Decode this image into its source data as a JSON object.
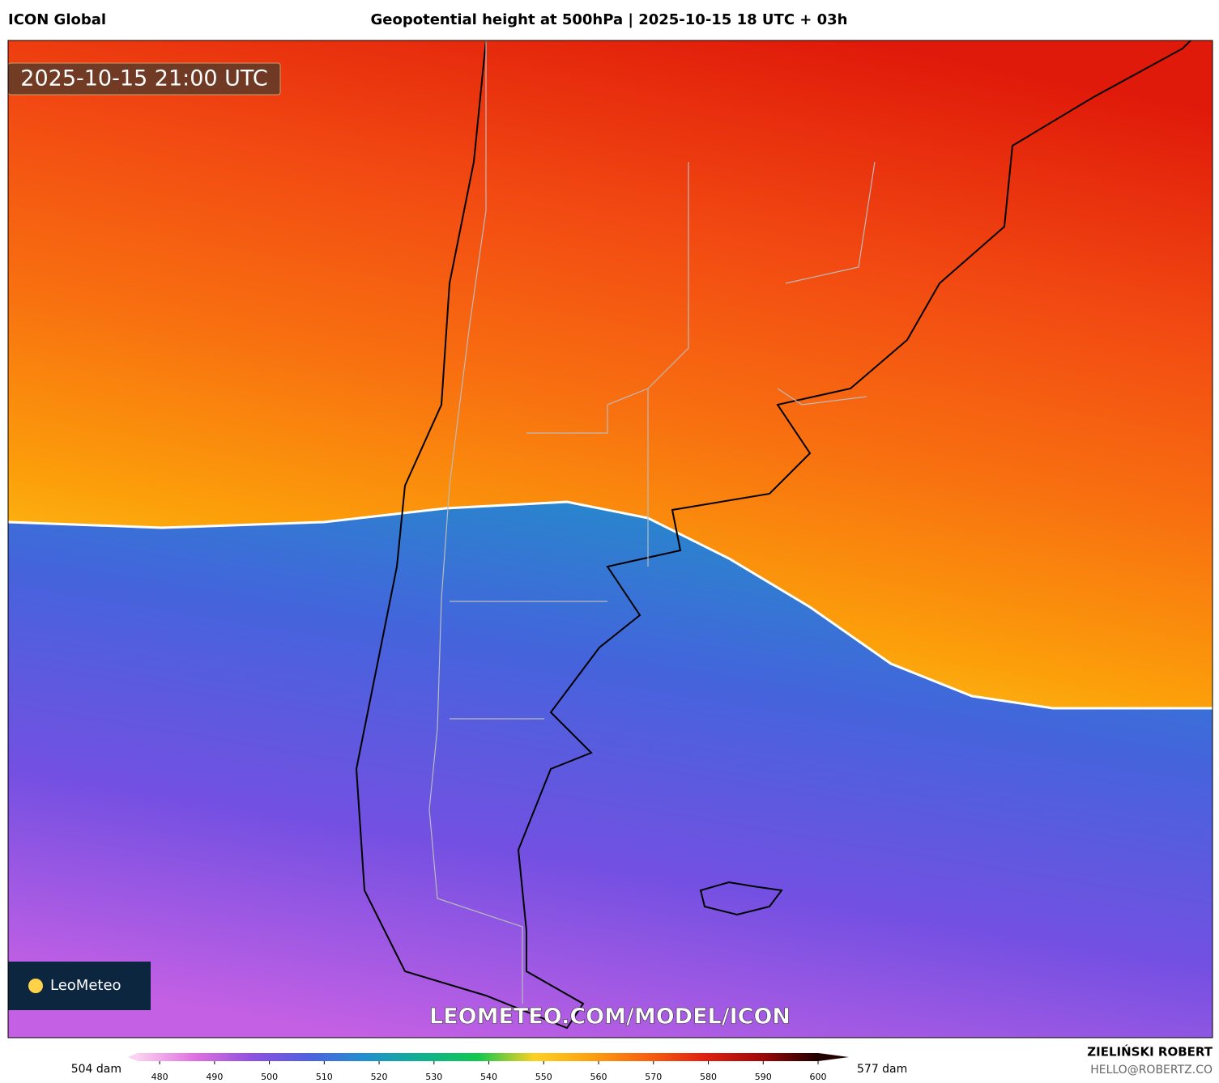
{
  "header": {
    "model": "ICON Global",
    "title": "Geopotential height at 500hPa | 2025-10-15 18 UTC + 03h"
  },
  "map": {
    "timestamp": "2025-10-15 21:00 UTC",
    "watermark": "LEOMETEO.COM/MODEL/ICON",
    "logo": "LeoMeteo"
  },
  "colorbar": {
    "range": [
      476,
      600
    ],
    "ticks": [
      480,
      490,
      500,
      510,
      520,
      530,
      540,
      550,
      560,
      570,
      580,
      590,
      600
    ],
    "min_label": "504 dam",
    "max_label": "577 dam",
    "colors": [
      "#fbd0f0",
      "#e070e0",
      "#9050e0",
      "#5060e0",
      "#2090d0",
      "#10b090",
      "#10c850",
      "#ffd020",
      "#fca010",
      "#f86010",
      "#e02010",
      "#a00808",
      "#200000"
    ]
  },
  "credits": {
    "author": "ZIELIŃSKI ROBERT",
    "email": "HELLO@ROBERTZ.CO"
  }
}
